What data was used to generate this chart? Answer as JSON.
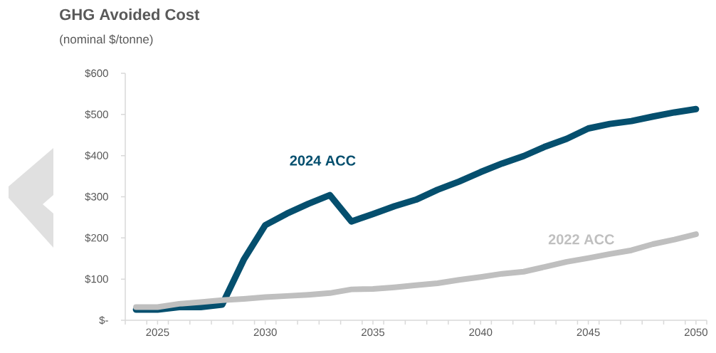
{
  "chart_data": {
    "type": "line",
    "title": "GHG Avoided Cost",
    "subtitle": "(nominal $/tonne)",
    "x": [
      2024,
      2025,
      2026,
      2027,
      2028,
      2029,
      2030,
      2031,
      2032,
      2033,
      2034,
      2035,
      2036,
      2037,
      2038,
      2039,
      2040,
      2041,
      2042,
      2043,
      2044,
      2045,
      2046,
      2047,
      2048,
      2049,
      2050
    ],
    "series": [
      {
        "name": "2024 ACC",
        "color": "#054f6e",
        "values": [
          26,
          26,
          32,
          32,
          38,
          147,
          231,
          259,
          283,
          304,
          240,
          258,
          277,
          293,
          317,
          337,
          360,
          381,
          399,
          422,
          441,
          466,
          477,
          484,
          495,
          505,
          513
        ]
      },
      {
        "name": "2022 ACC",
        "color": "#bfbfbf",
        "values": [
          32,
          32,
          40,
          44,
          49,
          52,
          56,
          59,
          62,
          66,
          75,
          76,
          80,
          85,
          90,
          98,
          105,
          113,
          118,
          130,
          142,
          151,
          161,
          170,
          185,
          196,
          209
        ]
      }
    ],
    "xlim": [
      2023.5,
      2050.5
    ],
    "xticks": [
      {
        "value": 2023.5,
        "label": null
      },
      {
        "value": 2024.5,
        "label": null
      },
      {
        "value": 2025,
        "label": "2025"
      },
      {
        "value": 2025.5,
        "label": null
      },
      {
        "value": 2026.5,
        "label": null
      },
      {
        "value": 2027.5,
        "label": null
      },
      {
        "value": 2028.5,
        "label": null
      },
      {
        "value": 2029.5,
        "label": null
      },
      {
        "value": 2030,
        "label": "2030"
      },
      {
        "value": 2030.5,
        "label": null
      },
      {
        "value": 2031.5,
        "label": null
      },
      {
        "value": 2032.5,
        "label": null
      },
      {
        "value": 2033.5,
        "label": null
      },
      {
        "value": 2034.5,
        "label": null
      },
      {
        "value": 2035,
        "label": "2035"
      },
      {
        "value": 2035.5,
        "label": null
      },
      {
        "value": 2036.5,
        "label": null
      },
      {
        "value": 2037.5,
        "label": null
      },
      {
        "value": 2038.5,
        "label": null
      },
      {
        "value": 2039.5,
        "label": null
      },
      {
        "value": 2040,
        "label": "2040"
      },
      {
        "value": 2040.5,
        "label": null
      },
      {
        "value": 2041.5,
        "label": null
      },
      {
        "value": 2042.5,
        "label": null
      },
      {
        "value": 2043.5,
        "label": null
      },
      {
        "value": 2044.5,
        "label": null
      },
      {
        "value": 2045,
        "label": "2045"
      },
      {
        "value": 2045.5,
        "label": null
      },
      {
        "value": 2046.5,
        "label": null
      },
      {
        "value": 2047.5,
        "label": null
      },
      {
        "value": 2048.5,
        "label": null
      },
      {
        "value": 2049.5,
        "label": null
      },
      {
        "value": 2050,
        "label": "2050"
      },
      {
        "value": 2050.5,
        "label": null
      }
    ],
    "ylim": [
      0,
      600
    ],
    "yticks": [
      {
        "value": 0,
        "label": "$-"
      },
      {
        "value": 100,
        "label": "$100"
      },
      {
        "value": 200,
        "label": "$200"
      },
      {
        "value": 300,
        "label": "$300"
      },
      {
        "value": 400,
        "label": "$400"
      },
      {
        "value": 500,
        "label": "$500"
      },
      {
        "value": 600,
        "label": "$600"
      }
    ]
  }
}
